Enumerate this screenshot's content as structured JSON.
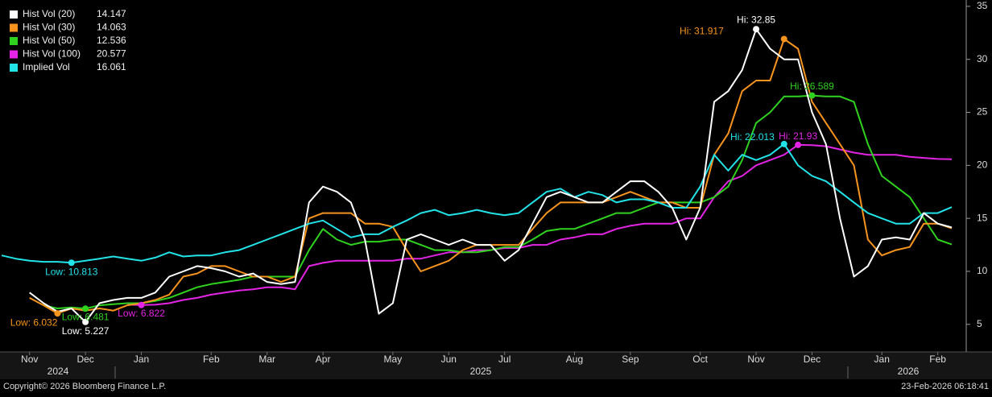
{
  "chart_data": {
    "type": "line",
    "x": [
      null,
      null,
      "Nov",
      null,
      null,
      null,
      "Dec",
      null,
      null,
      null,
      "Jan",
      null,
      null,
      null,
      null,
      "Feb",
      null,
      null,
      null,
      "Mar",
      null,
      null,
      null,
      "Apr",
      null,
      null,
      null,
      null,
      "May",
      null,
      null,
      null,
      "Jun",
      null,
      null,
      null,
      "Jul",
      null,
      null,
      null,
      null,
      "Aug",
      null,
      null,
      null,
      "Sep",
      null,
      null,
      null,
      null,
      "Oct",
      null,
      null,
      null,
      "Nov",
      null,
      null,
      null,
      "Dec",
      null,
      null,
      null,
      null,
      "Jan",
      null,
      null,
      null,
      "Feb",
      null
    ],
    "year_labels": [
      "2024",
      "2025",
      "2026"
    ],
    "ylim": [
      2.4,
      35.6
    ],
    "yticks": [
      5,
      10,
      15,
      20,
      25,
      30,
      35
    ],
    "grid": false,
    "legend": "top-left",
    "series": [
      {
        "name": "Hist Vol (20)",
        "color": "#ffffff",
        "last": 14.147,
        "high": {
          "value": 32.85,
          "label": "Hi: 32.85"
        },
        "low": {
          "value": 5.227,
          "label": "Low: 5.227"
        },
        "values": [
          null,
          null,
          8.0,
          7,
          6.2,
          6.5,
          5.227,
          7,
          7.3,
          7.5,
          7.5,
          8,
          9.5,
          10,
          10.5,
          10.3,
          10,
          9.5,
          9.8,
          9,
          8.8,
          9,
          16.5,
          18,
          17.5,
          16.5,
          13,
          6,
          7,
          13,
          13.5,
          13,
          12.5,
          13,
          12.5,
          12.5,
          11,
          12,
          14.5,
          17,
          17.5,
          17,
          16.5,
          16.5,
          17.5,
          18.5,
          18.5,
          17.5,
          16,
          13,
          16,
          26,
          27,
          29,
          32.85,
          31,
          30,
          30,
          25,
          22,
          15,
          9.5,
          10.5,
          13,
          13.2,
          13,
          15.5,
          14.5,
          14.147
        ]
      },
      {
        "name": "Hist Vol (30)",
        "color": "#f7941d",
        "last": 14.063,
        "high": {
          "value": 31.917,
          "label": "Hi: 31.917"
        },
        "low": {
          "value": 6.032,
          "label": "Low: 6.032"
        },
        "values": [
          null,
          null,
          7.5,
          6.8,
          6.032,
          6.5,
          6.3,
          6.5,
          6.3,
          6.8,
          7,
          7.3,
          7.8,
          9.5,
          9.8,
          10.5,
          10.5,
          10,
          9.5,
          9.5,
          9,
          9.5,
          15,
          15.5,
          15.5,
          15.5,
          14.5,
          14.5,
          14.2,
          12,
          10,
          10.5,
          11,
          12,
          12.5,
          12.5,
          12.5,
          12.5,
          14,
          15.5,
          16.5,
          16.5,
          16.5,
          16.5,
          17,
          17.5,
          17,
          16.5,
          16.5,
          16,
          16,
          21,
          23,
          27,
          28,
          28,
          31.917,
          31,
          26,
          24,
          22,
          20,
          13,
          11.5,
          12,
          12.3,
          14.5,
          14.5,
          14.063
        ]
      },
      {
        "name": "Hist Vol (50)",
        "color": "#2fd21e",
        "last": 12.536,
        "high": {
          "value": 26.589,
          "label": "Hi: 26.589"
        },
        "low": {
          "value": 6.481,
          "label": "Low: 6.481"
        },
        "values": [
          null,
          null,
          null,
          6.8,
          6.5,
          6.6,
          6.481,
          6.8,
          6.9,
          7,
          7,
          7.2,
          7.5,
          8,
          8.5,
          8.8,
          9,
          9.2,
          9.5,
          9.5,
          9.5,
          9.5,
          12,
          14,
          13,
          12.5,
          12.8,
          12.8,
          13,
          13,
          12.5,
          12,
          12,
          11.8,
          11.8,
          12,
          12.3,
          12.3,
          13,
          13.8,
          14,
          14,
          14.5,
          15,
          15.5,
          15.5,
          16,
          16.5,
          16.5,
          16.5,
          16.5,
          17,
          18,
          20.5,
          24,
          25,
          26.5,
          26.5,
          26.589,
          26.5,
          26.5,
          26,
          22,
          19,
          18,
          17,
          15,
          13,
          12.536
        ]
      },
      {
        "name": "Hist Vol (100)",
        "color": "#e424e4",
        "last": 20.577,
        "high": {
          "value": 21.93,
          "label": "Hi: 21.93"
        },
        "low": {
          "value": 6.822,
          "label": "Low: 6.822"
        },
        "values": [
          null,
          null,
          null,
          null,
          null,
          null,
          null,
          null,
          null,
          6.85,
          6.822,
          6.85,
          7,
          7.3,
          7.5,
          7.8,
          8,
          8.2,
          8.3,
          8.5,
          8.5,
          8.3,
          10.5,
          10.8,
          11,
          11,
          11,
          11,
          11,
          11.2,
          11.2,
          11.5,
          11.8,
          11.8,
          12,
          12,
          12.2,
          12.2,
          12.5,
          12.5,
          13,
          13.2,
          13.5,
          13.5,
          14,
          14.3,
          14.5,
          14.5,
          14.5,
          15,
          15,
          17,
          18.5,
          19,
          20,
          20.5,
          21,
          21.93,
          21.9,
          21.8,
          21.5,
          21.2,
          21,
          21,
          21,
          20.8,
          20.7,
          20.6,
          20.577
        ]
      },
      {
        "name": "Implied Vol",
        "color": "#22e3e8",
        "last": 16.061,
        "high": {
          "value": 22.013,
          "label": "Hi: 22.013"
        },
        "low": {
          "value": 10.813,
          "label": "Low: 10.813"
        },
        "values": [
          11.5,
          11.2,
          11,
          10.9,
          10.9,
          10.813,
          11,
          11.2,
          11.4,
          11.2,
          11,
          11.3,
          11.8,
          11.4,
          11.5,
          11.5,
          11.8,
          12,
          12.5,
          13,
          13.5,
          14,
          14.5,
          14.8,
          14,
          13.2,
          13.5,
          13.5,
          14.2,
          14.8,
          15.5,
          15.8,
          15.3,
          15.5,
          15.8,
          15.5,
          15.3,
          15.5,
          16.5,
          17.5,
          17.8,
          17,
          17.5,
          17.2,
          16.5,
          16.8,
          16.8,
          16.5,
          16,
          16,
          18,
          21,
          19.5,
          21,
          20.5,
          21,
          22.013,
          20,
          19,
          18.5,
          17.5,
          16.5,
          15.5,
          15,
          14.5,
          14.5,
          15.5,
          15.5,
          16.061
        ]
      }
    ]
  },
  "footer": {
    "copyright": "Copyright© 2026 Bloomberg Finance L.P.",
    "timestamp": "23-Feb-2026 06:18:41"
  }
}
